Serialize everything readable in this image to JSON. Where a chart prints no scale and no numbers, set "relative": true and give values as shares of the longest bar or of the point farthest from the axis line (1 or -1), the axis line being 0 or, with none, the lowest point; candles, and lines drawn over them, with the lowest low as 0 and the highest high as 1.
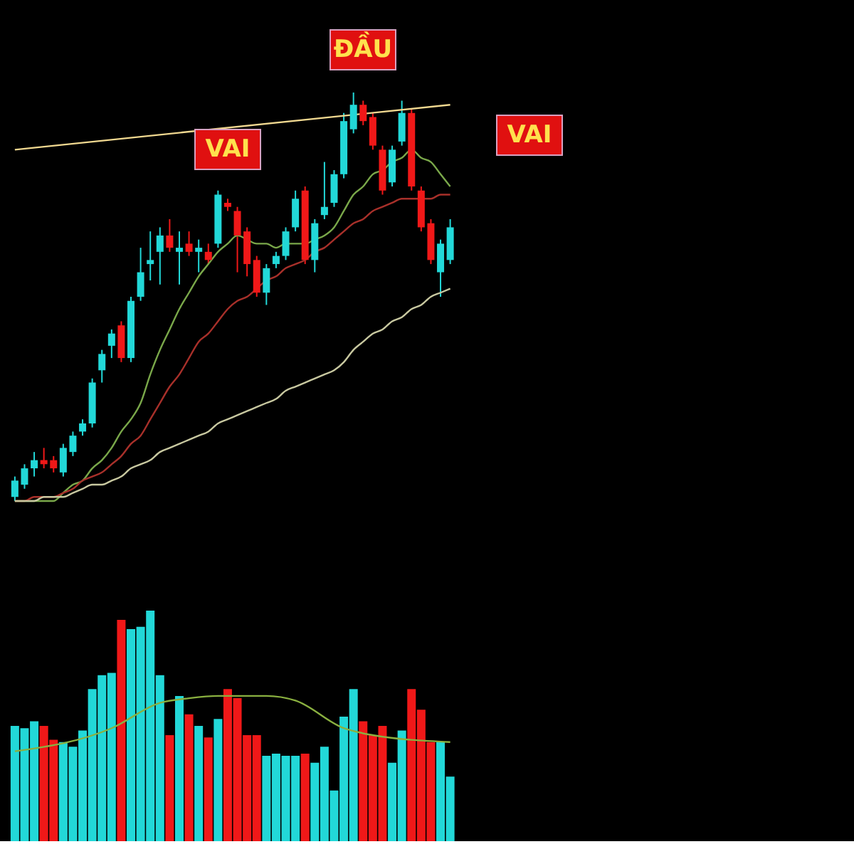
{
  "chart_data": [
    {
      "type": "candlestick",
      "relative": true,
      "tick_labels": false,
      "categories": [
        null,
        null,
        null,
        null,
        null,
        null,
        null,
        null,
        null,
        null,
        null,
        null,
        null,
        null,
        null,
        null,
        null,
        null,
        null,
        null,
        null,
        null,
        null,
        null,
        null,
        null,
        null,
        null,
        null,
        null,
        null,
        null,
        null,
        null,
        null,
        null,
        null,
        null,
        null,
        null,
        null,
        null,
        null,
        null,
        null,
        null
      ],
      "ohlc": [
        [
          0.01,
          0.06,
          0,
          0.05
        ],
        [
          0.04,
          0.09,
          0.03,
          0.08
        ],
        [
          0.08,
          0.12,
          0.06,
          0.1
        ],
        [
          0.1,
          0.13,
          0.08,
          0.09
        ],
        [
          0.1,
          0.11,
          0.07,
          0.08
        ],
        [
          0.07,
          0.14,
          0.06,
          0.13
        ],
        [
          0.12,
          0.17,
          0.11,
          0.16
        ],
        [
          0.17,
          0.2,
          0.16,
          0.19
        ],
        [
          0.19,
          0.3,
          0.18,
          0.29
        ],
        [
          0.32,
          0.37,
          0.29,
          0.36
        ],
        [
          0.38,
          0.42,
          0.35,
          0.41
        ],
        [
          0.43,
          0.44,
          0.34,
          0.35
        ],
        [
          0.35,
          0.5,
          0.34,
          0.49
        ],
        [
          0.5,
          0.62,
          0.49,
          0.56
        ],
        [
          0.58,
          0.66,
          0.54,
          0.59
        ],
        [
          0.61,
          0.67,
          0.53,
          0.65
        ],
        [
          0.65,
          0.69,
          0.61,
          0.62
        ],
        [
          0.61,
          0.66,
          0.53,
          0.62
        ],
        [
          0.63,
          0.66,
          0.6,
          0.61
        ],
        [
          0.61,
          0.64,
          0.56,
          0.62
        ],
        [
          0.61,
          0.63,
          0.58,
          0.59
        ],
        [
          0.63,
          0.76,
          0.62,
          0.75
        ],
        [
          0.73,
          0.74,
          0.71,
          0.72
        ],
        [
          0.71,
          0.72,
          0.56,
          0.65
        ],
        [
          0.66,
          0.67,
          0.55,
          0.58
        ],
        [
          0.59,
          0.6,
          0.5,
          0.51
        ],
        [
          0.51,
          0.58,
          0.48,
          0.57
        ],
        [
          0.58,
          0.61,
          0.57,
          0.6
        ],
        [
          0.6,
          0.67,
          0.59,
          0.66
        ],
        [
          0.67,
          0.76,
          0.66,
          0.74
        ],
        [
          0.76,
          0.77,
          0.58,
          0.59
        ],
        [
          0.59,
          0.69,
          0.56,
          0.68
        ],
        [
          0.7,
          0.83,
          0.69,
          0.72
        ],
        [
          0.73,
          0.81,
          0.72,
          0.8
        ],
        [
          0.8,
          0.95,
          0.79,
          0.93
        ],
        [
          0.91,
          1,
          0.9,
          0.97
        ],
        [
          0.97,
          0.98,
          0.92,
          0.93
        ],
        [
          0.94,
          0.95,
          0.86,
          0.87
        ],
        [
          0.86,
          0.87,
          0.75,
          0.76
        ],
        [
          0.78,
          0.87,
          0.77,
          0.86
        ],
        [
          0.88,
          0.98,
          0.87,
          0.95
        ],
        [
          0.95,
          0.96,
          0.76,
          0.77
        ],
        [
          0.76,
          0.77,
          0.66,
          0.67
        ],
        [
          0.68,
          0.69,
          0.58,
          0.59
        ],
        [
          0.56,
          0.64,
          0.5,
          0.63
        ],
        [
          0.59,
          0.69,
          0.58,
          0.67
        ]
      ],
      "colors": [
        "#22d8d8",
        "#22d8d8",
        "#22d8d8",
        "#f01818",
        "#f01818",
        "#22d8d8",
        "#22d8d8",
        "#22d8d8",
        "#22d8d8",
        "#22d8d8",
        "#22d8d8",
        "#f01818",
        "#22d8d8",
        "#22d8d8",
        "#22d8d8",
        "#22d8d8",
        "#f01818",
        "#22d8d8",
        "#f01818",
        "#22d8d8",
        "#f01818",
        "#22d8d8",
        "#f01818",
        "#f01818",
        "#f01818",
        "#f01818",
        "#22d8d8",
        "#22d8d8",
        "#22d8d8",
        "#22d8d8",
        "#f01818",
        "#22d8d8",
        "#22d8d8",
        "#22d8d8",
        "#22d8d8",
        "#22d8d8",
        "#f01818",
        "#f01818",
        "#f01818",
        "#22d8d8",
        "#22d8d8",
        "#f01818",
        "#f01818",
        "#f01818",
        "#22d8d8",
        "#22d8d8"
      ],
      "series": [
        {
          "type": "line",
          "color": "#7aa84a",
          "values": [
            0,
            0,
            0,
            0,
            0,
            0.02,
            0.04,
            0.05,
            0.08,
            0.1,
            0.13,
            0.17,
            0.2,
            0.24,
            0.31,
            0.37,
            0.42,
            0.47,
            0.51,
            0.55,
            0.58,
            0.61,
            0.63,
            0.65,
            0.64,
            0.63,
            0.63,
            0.62,
            0.63,
            0.63,
            0.63,
            0.64,
            0.65,
            0.67,
            0.71,
            0.75,
            0.77,
            0.8,
            0.81,
            0.83,
            0.84,
            0.86,
            0.84,
            0.83,
            0.8,
            0.77
          ]
        },
        {
          "type": "line",
          "color": "#a8302a",
          "values": [
            0,
            0,
            0.01,
            0.01,
            0.01,
            0.02,
            0.03,
            0.05,
            0.06,
            0.07,
            0.09,
            0.11,
            0.14,
            0.16,
            0.2,
            0.24,
            0.28,
            0.31,
            0.35,
            0.39,
            0.41,
            0.44,
            0.47,
            0.49,
            0.5,
            0.52,
            0.54,
            0.55,
            0.57,
            0.58,
            0.59,
            0.61,
            0.62,
            0.64,
            0.66,
            0.68,
            0.69,
            0.71,
            0.72,
            0.73,
            0.74,
            0.74,
            0.74,
            0.74,
            0.75,
            0.75
          ]
        },
        {
          "type": "line",
          "color": "#c8c8a0",
          "values": [
            0,
            0,
            0,
            0.01,
            0.01,
            0.01,
            0.02,
            0.03,
            0.04,
            0.04,
            0.05,
            0.06,
            0.08,
            0.09,
            0.1,
            0.12,
            0.13,
            0.14,
            0.15,
            0.16,
            0.17,
            0.19,
            0.2,
            0.21,
            0.22,
            0.23,
            0.24,
            0.25,
            0.27,
            0.28,
            0.29,
            0.3,
            0.31,
            0.32,
            0.34,
            0.37,
            0.39,
            0.41,
            0.42,
            0.44,
            0.45,
            0.47,
            0.48,
            0.5,
            0.51,
            0.52
          ]
        },
        {
          "type": "line",
          "color": "#f0d890",
          "values": [
            0.86,
            null,
            null,
            null,
            null,
            null,
            null,
            null,
            null,
            null,
            null,
            null,
            null,
            null,
            null,
            null,
            null,
            null,
            null,
            null,
            null,
            null,
            null,
            null,
            null,
            null,
            null,
            null,
            null,
            null,
            null,
            null,
            null,
            null,
            null,
            null,
            null,
            null,
            null,
            null,
            null,
            null,
            null,
            null,
            null,
            0.97
          ]
        }
      ],
      "annotations": [
        "VAI",
        "ĐẦU",
        "VAI"
      ]
    },
    {
      "type": "bar",
      "relative": true,
      "tick_labels": false,
      "categories": [
        null,
        null,
        null,
        null,
        null,
        null,
        null,
        null,
        null,
        null,
        null,
        null,
        null,
        null,
        null,
        null,
        null,
        null,
        null,
        null,
        null,
        null,
        null,
        null,
        null,
        null,
        null,
        null,
        null,
        null,
        null,
        null,
        null,
        null,
        null,
        null,
        null,
        null,
        null,
        null,
        null,
        null,
        null,
        null,
        null,
        null
      ],
      "series": [
        {
          "type": "bar",
          "colors": [
            "#22d8d8",
            "#22d8d8",
            "#22d8d8",
            "#f01818",
            "#f01818",
            "#22d8d8",
            "#22d8d8",
            "#22d8d8",
            "#22d8d8",
            "#22d8d8",
            "#22d8d8",
            "#f01818",
            "#22d8d8",
            "#22d8d8",
            "#22d8d8",
            "#22d8d8",
            "#f01818",
            "#22d8d8",
            "#f01818",
            "#22d8d8",
            "#f01818",
            "#22d8d8",
            "#f01818",
            "#f01818",
            "#f01818",
            "#f01818",
            "#22d8d8",
            "#22d8d8",
            "#22d8d8",
            "#22d8d8",
            "#f01818",
            "#22d8d8",
            "#22d8d8",
            "#22d8d8",
            "#22d8d8",
            "#22d8d8",
            "#f01818",
            "#f01818",
            "#f01818",
            "#22d8d8",
            "#22d8d8",
            "#f01818",
            "#f01818",
            "#f01818",
            "#22d8d8",
            "#22d8d8"
          ],
          "values": [
            0.5,
            0.49,
            0.52,
            0.5,
            0.44,
            0.43,
            0.41,
            0.48,
            0.66,
            0.72,
            0.73,
            0.96,
            0.92,
            0.93,
            1.0,
            0.72,
            0.46,
            0.63,
            0.55,
            0.5,
            0.45,
            0.53,
            0.66,
            0.62,
            0.46,
            0.46,
            0.37,
            0.38,
            0.37,
            0.37,
            0.38,
            0.34,
            0.41,
            0.22,
            0.54,
            0.66,
            0.52,
            0.46,
            0.5,
            0.34,
            0.48,
            0.66,
            0.57,
            0.43,
            0.43,
            0.28
          ]
        },
        {
          "type": "line",
          "color": "#8ab040",
          "values": [
            0.39,
            null,
            null,
            null,
            null,
            null,
            null,
            null,
            null,
            null,
            0.49,
            null,
            null,
            null,
            null,
            0.6,
            null,
            null,
            0.62,
            null,
            null,
            0.63,
            null,
            null,
            null,
            null,
            0.63,
            null,
            null,
            0.61,
            null,
            null,
            null,
            null,
            0.49,
            null,
            null,
            0.46,
            null,
            null,
            null,
            null,
            null,
            null,
            null,
            0.43
          ]
        }
      ]
    }
  ]
}
